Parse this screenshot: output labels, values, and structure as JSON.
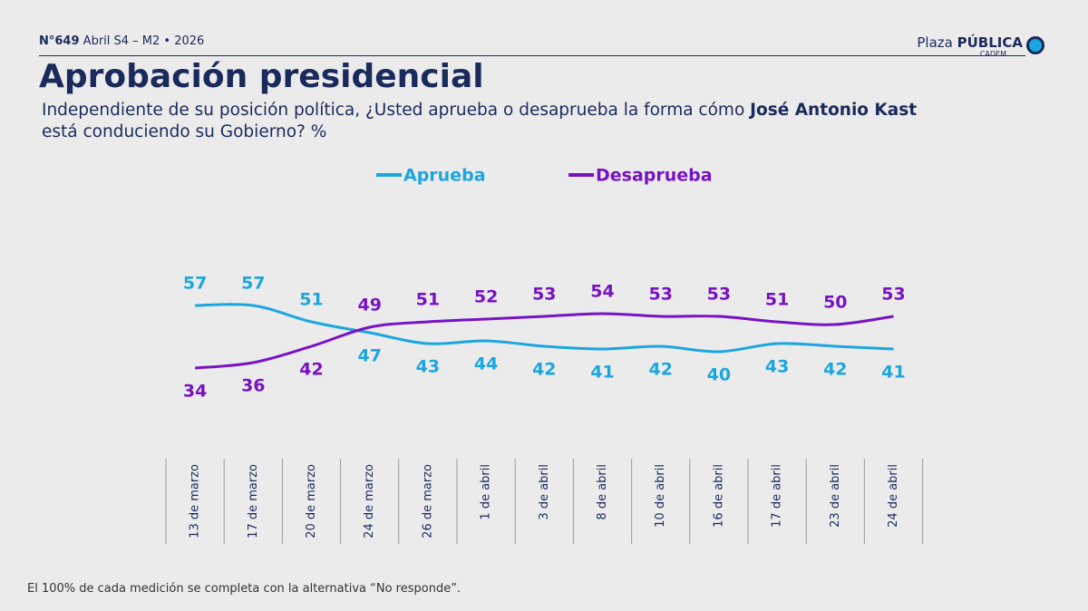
{
  "header": {
    "number": "N°649",
    "edition": "Abril S4 – M2 • 2026",
    "logo": "Plaza",
    "logo_bold": "PÚBLICA",
    "logo_sub": "CADEM"
  },
  "chart_data": {
    "type": "line",
    "title": "Aprobación presidencial",
    "subtitle": [
      "Independiente de su posición política, ¿Usted aprueba o desaprueba la forma cómo ",
      "José Antonio Kast",
      "está conduciendo su Gobierno? %"
    ],
    "categories": [
      "13 de marzo",
      "17 de marzo",
      "20 de marzo",
      "24 de marzo",
      "26 de marzo",
      "1 de abril",
      "3 de abril",
      "8 de abril",
      "10 de abril",
      "16 de abril",
      "17 de abril",
      "23 de abril",
      "24 de abril"
    ],
    "series": [
      {
        "name": "Aprueba",
        "color": "#1ba6e0",
        "values": [
          57,
          57,
          51,
          47,
          43,
          44,
          42,
          41,
          42,
          40,
          43,
          42,
          41
        ]
      },
      {
        "name": "Desaprueba",
        "color": "#7812c4",
        "values": [
          34,
          36,
          42,
          49,
          51,
          52,
          53,
          54,
          53,
          53,
          51,
          50,
          53
        ]
      }
    ],
    "footnote": "El 100% de cada medición se completa con la alternativa “No responde”."
  }
}
